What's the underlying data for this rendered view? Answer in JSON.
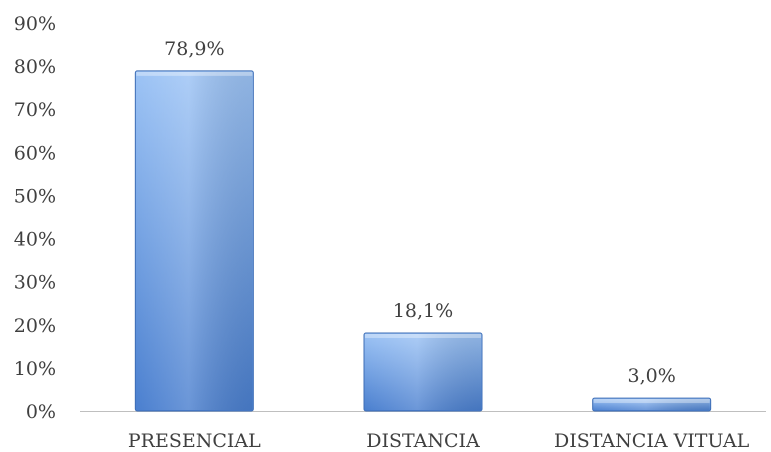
{
  "chart_data": {
    "type": "bar",
    "categories": [
      "PRESENCIAL",
      "DISTANCIA",
      "DISTANCIA VITUAL"
    ],
    "values": [
      78.9,
      18.1,
      3.0
    ],
    "data_labels": [
      "78,9%",
      "18,1%",
      "3,0%"
    ],
    "title": "",
    "xlabel": "",
    "ylabel": "",
    "ylim": [
      0,
      90
    ],
    "y_ticks": [
      0,
      10,
      20,
      30,
      40,
      50,
      60,
      70,
      80,
      90
    ],
    "y_tick_labels": [
      "0%",
      "10%",
      "20%",
      "30%",
      "40%",
      "50%",
      "60%",
      "70%",
      "80%",
      "90%"
    ],
    "grid": false,
    "legend": "none",
    "colors": {
      "bar_light": "#9cc3f5",
      "bar_dark": "#4a7fcf",
      "bar_edge": "#3d6db5",
      "axis": "#bfbfbf",
      "text": "#404040"
    }
  }
}
